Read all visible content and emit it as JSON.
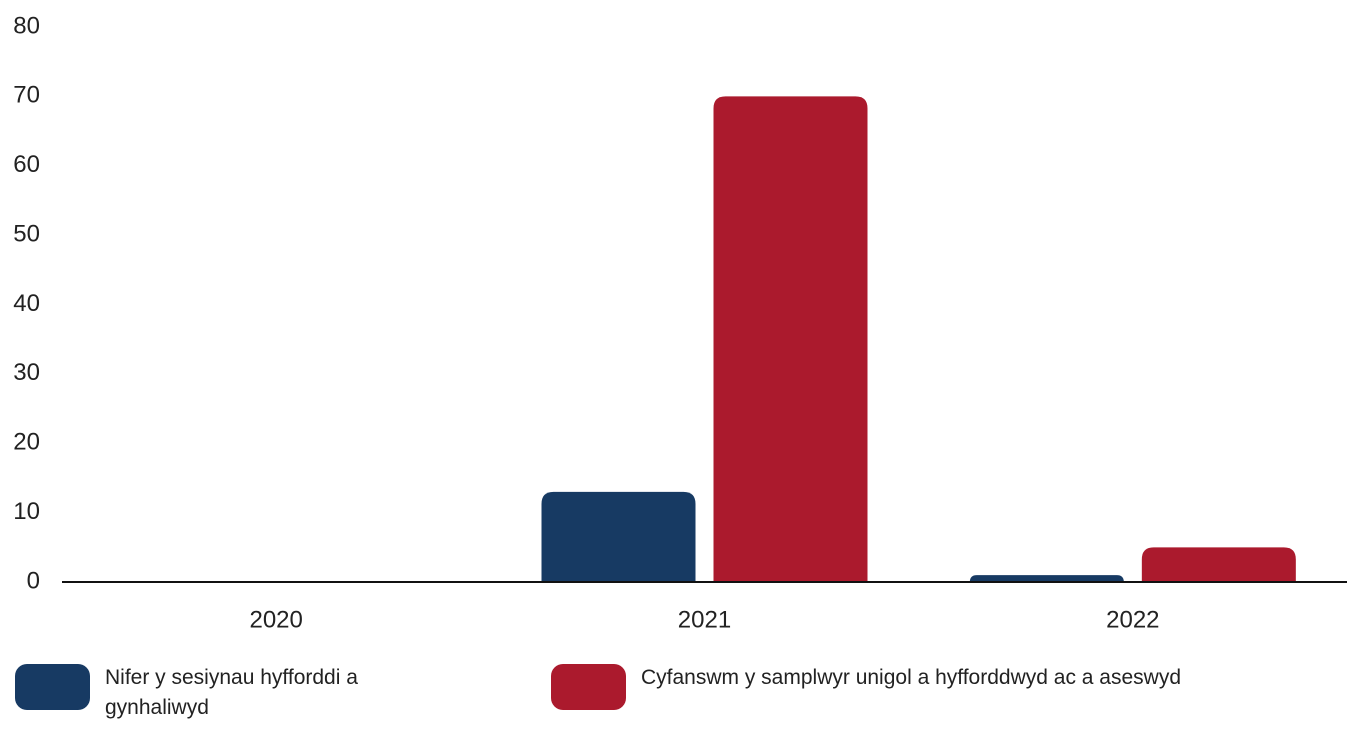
{
  "chart_data": {
    "type": "bar",
    "categories": [
      "2020",
      "2021",
      "2022"
    ],
    "series": [
      {
        "name": "Nifer y sesiynau hyfforddi a gynhaliwyd",
        "color": "#173a63",
        "values": [
          0,
          13,
          1
        ]
      },
      {
        "name": "Cyfanswm y samplwyr unigol a hyfforddwyd ac a aseswyd",
        "color": "#ab1a2d",
        "values": [
          0,
          70,
          5
        ]
      }
    ],
    "ylim": [
      0,
      80
    ],
    "yticks": [
      0,
      10,
      20,
      30,
      40,
      50,
      60,
      70,
      80
    ],
    "grid": false
  }
}
